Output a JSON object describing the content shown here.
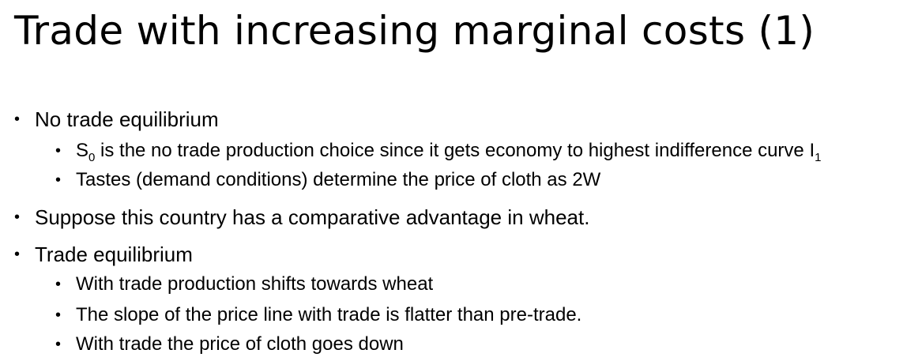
{
  "slide": {
    "title": "Trade with increasing marginal costs (1)"
  },
  "bullets": [
    {
      "text": "No trade equilibrium"
    },
    {
      "pre": "S",
      "sub": "0",
      "post": " is the no trade production choice since it gets economy to highest indifference curve I",
      "sub2": "1"
    },
    {
      "text": "Tastes (demand conditions) determine the price of cloth as 2W"
    },
    {
      "text": "Suppose this country has a comparative advantage in wheat."
    },
    {
      "text": "Trade equilibrium"
    },
    {
      "text": "With trade production shifts towards wheat"
    },
    {
      "text": "The slope of the price line with trade is flatter than pre-trade."
    },
    {
      "text": "With trade the price of cloth goes down"
    }
  ],
  "bullet_symbol": "•"
}
